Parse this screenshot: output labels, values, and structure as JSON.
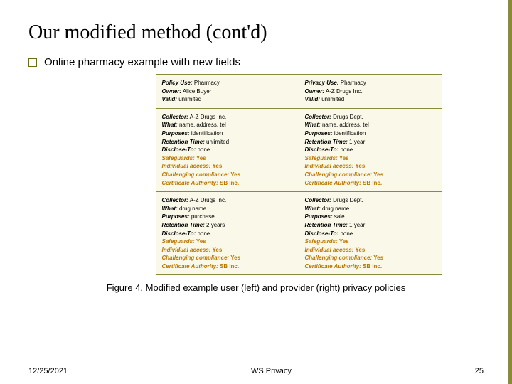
{
  "title": "Our modified method (cont'd)",
  "subtitle": "Online pharmacy example with new fields",
  "caption": "Figure 4. Modified example user (left) and provider (right) privacy policies",
  "footer": {
    "date": "12/25/2021",
    "center": "WS Privacy",
    "page": "25"
  },
  "columns": [
    {
      "header": [
        {
          "label": "Policy Use:",
          "value": " Pharmacy",
          "new": false
        },
        {
          "label": "Owner:",
          "value": " Alice Buyer",
          "new": false
        },
        {
          "label": "Valid:",
          "value": " unlimited",
          "new": false
        }
      ],
      "blocks": [
        [
          {
            "label": "Collector:",
            "value": " A-Z Drugs Inc.",
            "new": false
          },
          {
            "label": "What:",
            "value": " name, address, tel",
            "new": false
          },
          {
            "label": "Purposes:",
            "value": " identification",
            "new": false
          },
          {
            "label": "Retention Time:",
            "value": " unlimited",
            "new": false
          },
          {
            "label": "Disclose-To:",
            "value": " none",
            "new": false
          },
          {
            "label": "Safeguards:",
            "value": " Yes",
            "new": true
          },
          {
            "label": "Individual access:",
            "value": " Yes",
            "new": true
          },
          {
            "label": "Challenging compliance:",
            "value": " Yes",
            "new": true
          },
          {
            "label": "Certificate Authority:",
            "value": " SB Inc.",
            "new": true
          }
        ],
        [
          {
            "label": "Collector:",
            "value": " A-Z Drugs Inc.",
            "new": false
          },
          {
            "label": "What:",
            "value": " drug name",
            "new": false
          },
          {
            "label": "Purposes:",
            "value": " purchase",
            "new": false
          },
          {
            "label": "Retention Time:",
            "value": " 2 years",
            "new": false
          },
          {
            "label": "Disclose-To:",
            "value": " none",
            "new": false
          },
          {
            "label": "Safeguards:",
            "value": " Yes",
            "new": true
          },
          {
            "label": "Individual access:",
            "value": " Yes",
            "new": true
          },
          {
            "label": "Challenging compliance:",
            "value": " Yes",
            "new": true
          },
          {
            "label": "Certificate Authority:",
            "value": " SB Inc.",
            "new": true
          }
        ]
      ]
    },
    {
      "header": [
        {
          "label": "Privacy Use:",
          "value": " Pharmacy",
          "new": false
        },
        {
          "label": "Owner:",
          "value": " A-Z Drugs Inc.",
          "new": false
        },
        {
          "label": "Valid:",
          "value": " unlimited",
          "new": false
        }
      ],
      "blocks": [
        [
          {
            "label": "Collector:",
            "value": " Drugs Dept.",
            "new": false
          },
          {
            "label": "What:",
            "value": " name, address, tel",
            "new": false
          },
          {
            "label": "Purposes:",
            "value": " identification",
            "new": false
          },
          {
            "label": "Retention Time:",
            "value": " 1 year",
            "new": false
          },
          {
            "label": "Disclose-To:",
            "value": " none",
            "new": false
          },
          {
            "label": "Safeguards:",
            "value": " Yes",
            "new": true
          },
          {
            "label": "Individual access:",
            "value": " Yes",
            "new": true
          },
          {
            "label": "Challenging compliance:",
            "value": " Yes",
            "new": true
          },
          {
            "label": "Certificate Authority:",
            "value": " SB Inc.",
            "new": true
          }
        ],
        [
          {
            "label": "Collector:",
            "value": " Drugs Dept.",
            "new": false
          },
          {
            "label": "What:",
            "value": " drug name",
            "new": false
          },
          {
            "label": "Purposes:",
            "value": " sale",
            "new": false
          },
          {
            "label": "Retention Time:",
            "value": " 1 year",
            "new": false
          },
          {
            "label": "Disclose-To:",
            "value": " none",
            "new": false
          },
          {
            "label": "Safeguards:",
            "value": " Yes",
            "new": true
          },
          {
            "label": "Individual access:",
            "value": " Yes",
            "new": true
          },
          {
            "label": "Challenging compliance:",
            "value": " Yes",
            "new": true
          },
          {
            "label": "Certificate Authority:",
            "value": " SB Inc.",
            "new": true
          }
        ]
      ]
    }
  ]
}
